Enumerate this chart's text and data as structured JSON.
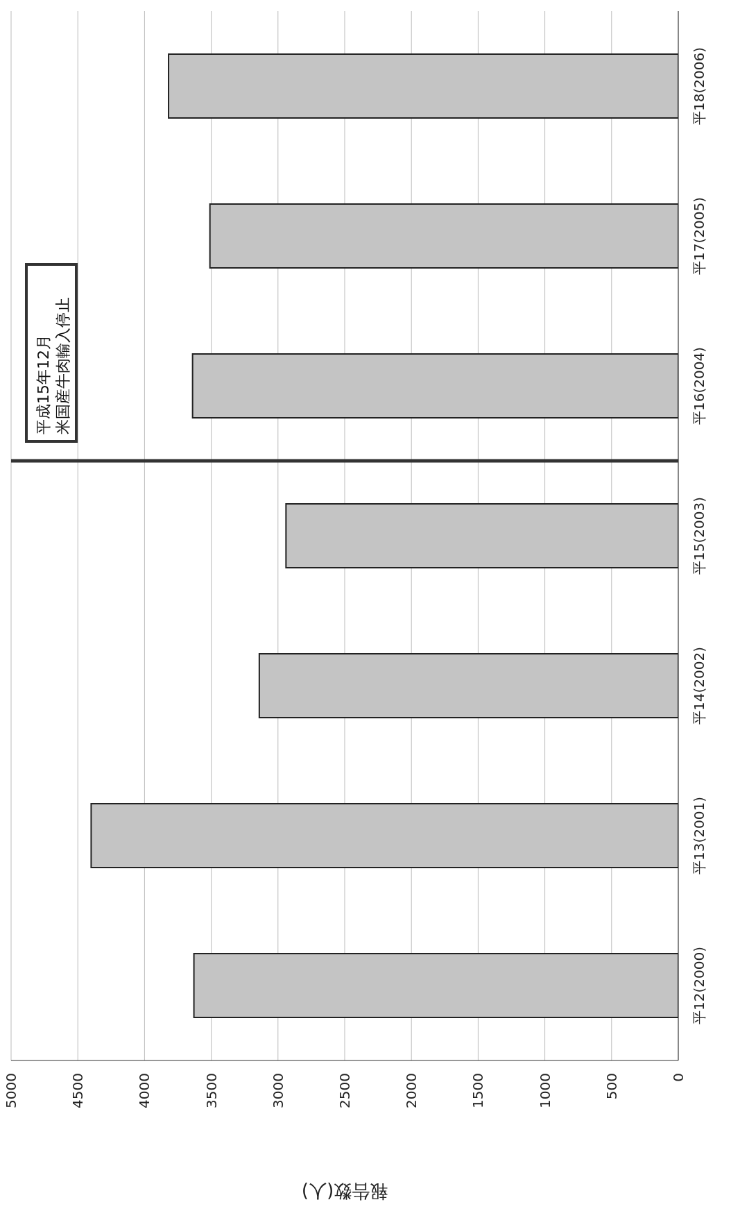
{
  "chart_data": {
    "type": "bar",
    "orientation": "horizontal",
    "xlabel": "報告数(人)",
    "categories": [
      "平18(2006)",
      "平17(2005)",
      "平16(2004)",
      "平15(2003)",
      "平14(2002)",
      "平13(2001)",
      "平12(2000)"
    ],
    "values": [
      3820,
      3510,
      3640,
      2940,
      3140,
      4400,
      3630
    ],
    "color": "#c4c4c4",
    "xlim": [
      5000,
      0
    ],
    "xticks": [
      5000,
      4500,
      4000,
      3500,
      3000,
      2500,
      2000,
      1500,
      1000,
      500,
      0
    ],
    "grid": "x",
    "legend": false,
    "ref_lines": [
      {
        "axis": "y",
        "value": "平15(2003)",
        "label": "平成15年12月米国産牛肉輸入停止",
        "color": "#333333"
      }
    ]
  }
}
